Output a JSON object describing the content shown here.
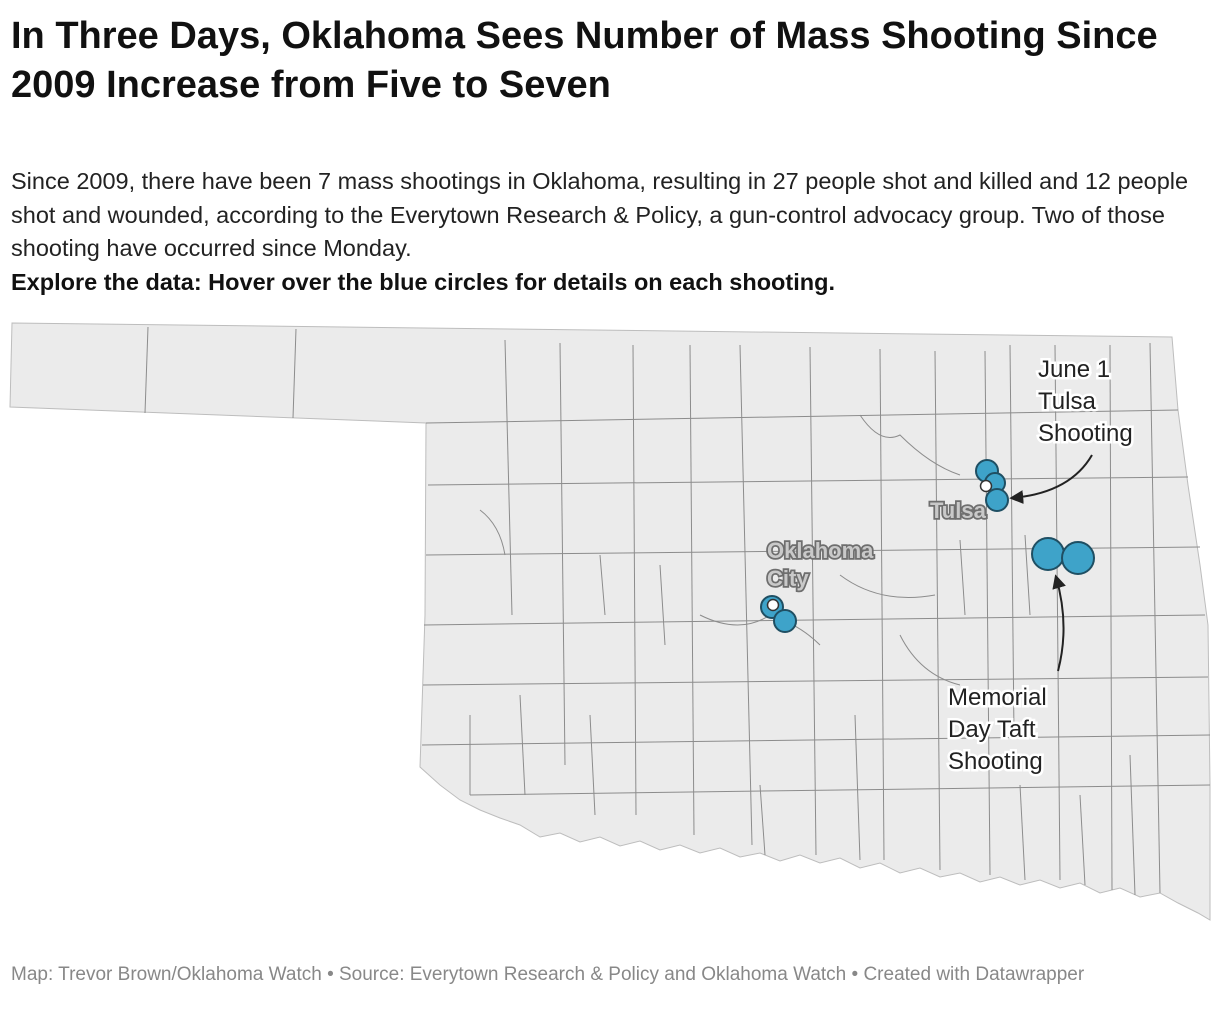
{
  "title": "In Three Days, Oklahoma Sees Number of Mass Shooting Since 2009 Increase from Five to Seven",
  "description": "Since 2009, there have been 7 mass shootings in Oklahoma, resulting in 27 people shot and killed and 12 people shot and wounded, according to the Everytown Research & Policy, a gun-control advocacy group. Two of those shooting have occurred since Monday.",
  "instruction": "Explore the data: Hover over the blue circles for details on each shooting.",
  "footer": "Map: Trevor Brown/Oklahoma Watch • Source: Everytown Research & Policy and Oklahoma Watch • Created with Datawrapper",
  "map": {
    "colors": {
      "land": "#ebebeb",
      "county_border": "#8c8c8c",
      "marker_fill": "#3ea3c9",
      "marker_stroke": "#1f4f63"
    },
    "cities": {
      "tulsa": "Tulsa",
      "oklahoma_city_line1": "Oklahoma",
      "oklahoma_city_line2": "City"
    },
    "annotations": {
      "tulsa": [
        "June 1",
        "Tulsa",
        "Shooting"
      ],
      "taft": [
        "Memorial",
        "Day Taft",
        "Shooting"
      ]
    }
  }
}
